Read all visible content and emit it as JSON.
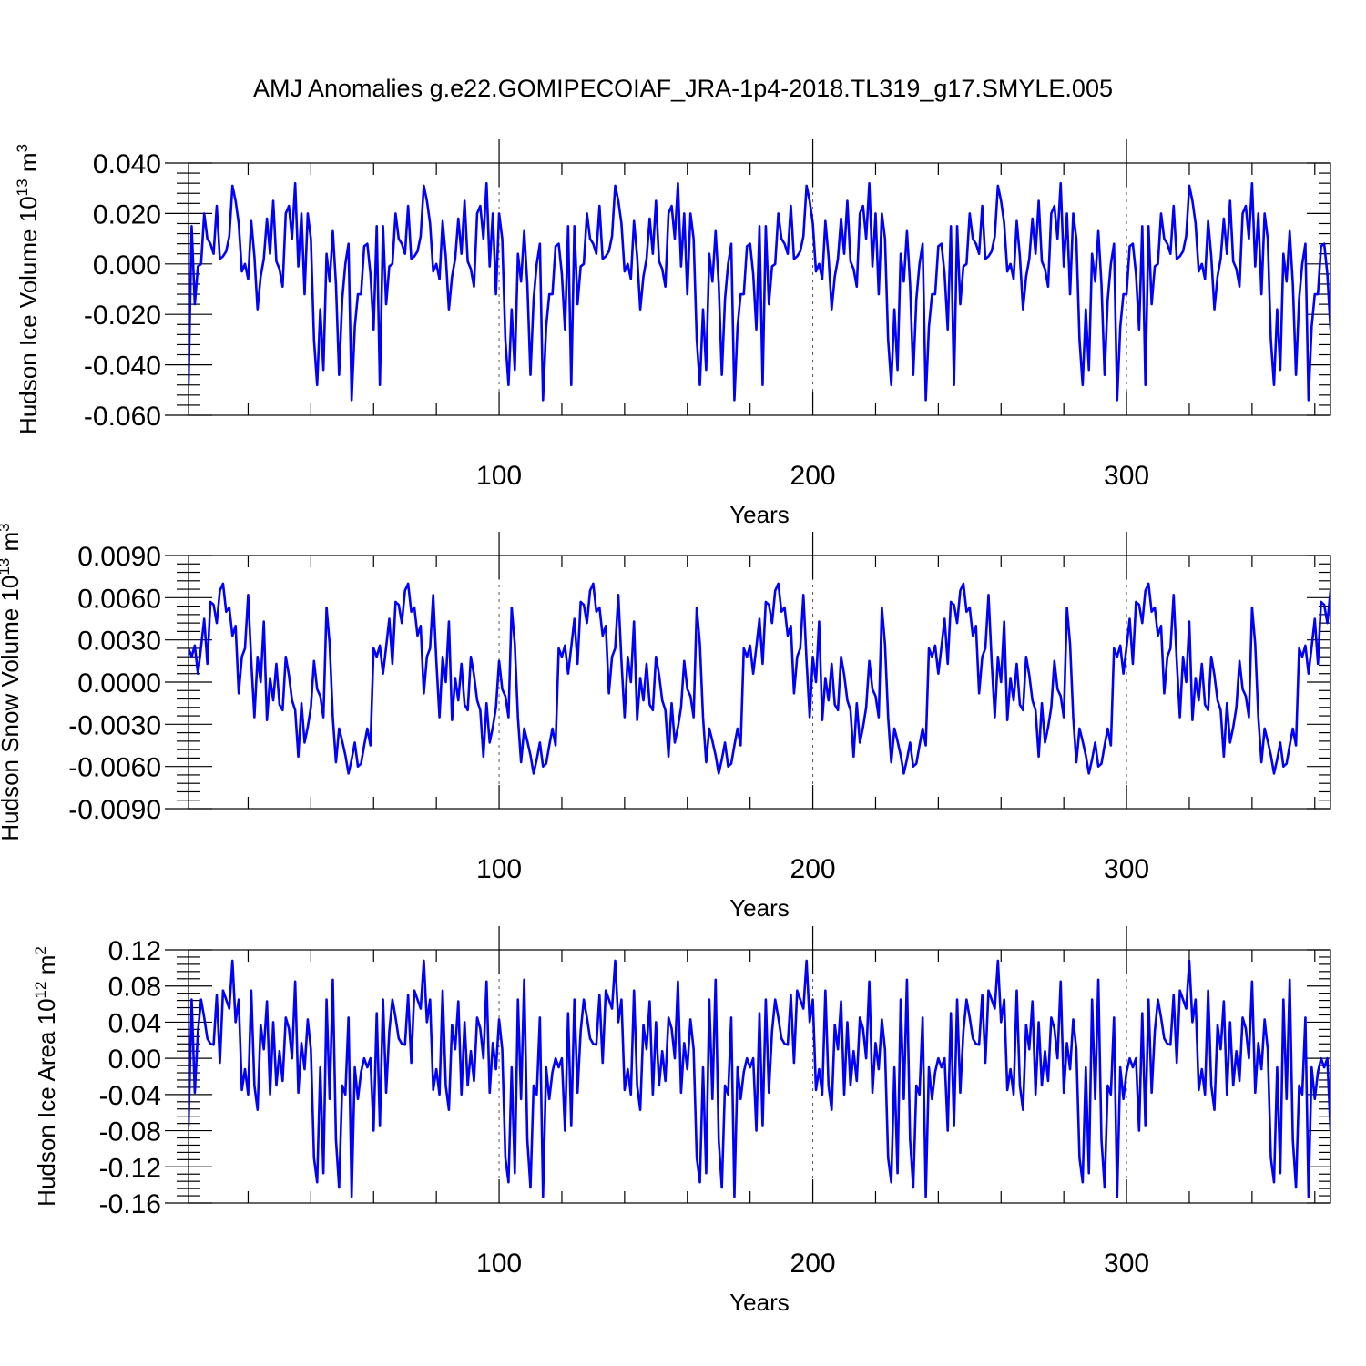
{
  "title": "AMJ Anomalies g.e22.GOMIPECOIAF_JRA-1p4-2018.TL319_g17.SMYLE.005",
  "chart_data": [
    {
      "type": "line",
      "ylabel_main": "Hudson Ice Volume 10",
      "ylabel_exp": "13",
      "ylabel_unit": " m",
      "ylabel_unit_exp": "3",
      "xlabel": "Years",
      "xlim": [
        1,
        365
      ],
      "ylim": [
        -0.06,
        0.04
      ],
      "yticks": [
        -0.06,
        -0.04,
        -0.02,
        0.0,
        0.02,
        0.04
      ],
      "ytick_labels": [
        "-0.060",
        "-0.040",
        "-0.020",
        "0.000",
        "0.020",
        "0.040"
      ],
      "xticks": [
        100,
        200,
        300
      ],
      "xtick_labels": [
        "100",
        "200",
        "300"
      ],
      "line_color": "#0000ff",
      "grid": "dashed vertical at 100, 200, 300",
      "period": 61,
      "values": [
        -0.048,
        0.015,
        -0.016,
        -0.001,
        0.0,
        0.02,
        0.01,
        0.008,
        0.004,
        0.023,
        0.002,
        0.003,
        0.005,
        0.011,
        0.031,
        0.025,
        0.016,
        -0.003,
        0.0,
        -0.006,
        0.017,
        0.003,
        -0.018,
        -0.005,
        0.002,
        0.018,
        0.004,
        0.025,
        0.001,
        -0.002,
        -0.009,
        0.02,
        0.023,
        0.01,
        0.032,
        -0.001,
        0.02,
        -0.012,
        0.02,
        0.01,
        -0.03,
        -0.048,
        -0.018,
        -0.042,
        0.004,
        -0.007,
        0.013,
        -0.008,
        -0.044,
        -0.014,
        0.0,
        0.008,
        -0.054,
        -0.025,
        -0.012,
        -0.012,
        0.007,
        0.008,
        -0.004,
        -0.026,
        0.015
      ]
    },
    {
      "type": "line",
      "ylabel_main": "Hudson Snow Volume 10",
      "ylabel_exp": "13",
      "ylabel_unit": " m",
      "ylabel_unit_exp": "3",
      "xlabel": "Years",
      "xlim": [
        1,
        365
      ],
      "ylim": [
        -0.009,
        0.009
      ],
      "yticks": [
        -0.009,
        -0.006,
        -0.003,
        0.0,
        0.003,
        0.006,
        0.009
      ],
      "ytick_labels": [
        "-0.0090",
        "-0.0060",
        "-0.0030",
        "0.0000",
        "0.0030",
        "0.0060",
        "0.0090"
      ],
      "xticks": [
        100,
        200,
        300
      ],
      "xtick_labels": [
        "100",
        "200",
        "300"
      ],
      "line_color": "#0000ff",
      "grid": "dashed vertical at 100, 200, 300",
      "period": 59,
      "values": [
        0.0024,
        0.0018,
        0.0026,
        0.0006,
        0.0025,
        0.0045,
        0.0013,
        0.0057,
        0.0055,
        0.0042,
        0.0065,
        0.007,
        0.005,
        0.0053,
        0.0033,
        0.004,
        -0.0008,
        0.0018,
        0.0024,
        0.0062,
        0.0015,
        -0.0025,
        0.0018,
        0.0,
        0.0043,
        -0.0027,
        0.0003,
        -0.0013,
        0.0013,
        -0.0016,
        -0.002,
        0.0018,
        0.0005,
        -0.0013,
        -0.002,
        -0.0053,
        -0.0015,
        -0.0043,
        -0.0032,
        -0.0018,
        0.0015,
        -0.0005,
        -0.001,
        -0.0025,
        0.0053,
        0.0027,
        -0.0025,
        -0.0057,
        -0.0033,
        -0.0042,
        -0.0052,
        -0.0065,
        -0.0055,
        -0.0043,
        -0.006,
        -0.0058,
        -0.0045,
        -0.0033,
        -0.0045
      ]
    },
    {
      "type": "line",
      "ylabel_main": "Hudson Ice Area 10",
      "ylabel_exp": "12",
      "ylabel_unit": " m",
      "ylabel_unit_exp": "2",
      "xlabel": "Years",
      "xlim": [
        1,
        365
      ],
      "ylim": [
        -0.16,
        0.12
      ],
      "yticks": [
        -0.16,
        -0.12,
        -0.08,
        -0.04,
        0.0,
        0.04,
        0.08,
        0.12
      ],
      "ytick_labels": [
        "-0.16",
        "-0.12",
        "-0.08",
        "-0.04",
        "0.00",
        "0.04",
        "0.08",
        "0.12"
      ],
      "xticks": [
        100,
        200,
        300
      ],
      "xtick_labels": [
        "100",
        "200",
        "300"
      ],
      "line_color": "#0000ff",
      "grid": "dashed vertical at 100, 200, 300",
      "period": 61,
      "values": [
        -0.075,
        0.065,
        -0.038,
        0.03,
        0.065,
        0.045,
        0.022,
        0.016,
        0.015,
        0.07,
        -0.005,
        0.075,
        0.065,
        0.055,
        0.108,
        0.04,
        0.065,
        -0.035,
        -0.012,
        -0.04,
        0.075,
        -0.03,
        -0.057,
        0.037,
        0.01,
        0.063,
        -0.04,
        0.04,
        -0.03,
        0.008,
        -0.025,
        0.045,
        0.033,
        0.0,
        0.085,
        -0.038,
        0.017,
        -0.012,
        0.043,
        0.01,
        -0.11,
        -0.137,
        -0.01,
        -0.127,
        0.065,
        -0.045,
        0.087,
        -0.09,
        -0.143,
        -0.03,
        -0.04,
        0.045,
        -0.153,
        -0.01,
        -0.045,
        -0.015,
        0.0,
        -0.01,
        0.0,
        -0.08,
        0.05
      ]
    }
  ]
}
